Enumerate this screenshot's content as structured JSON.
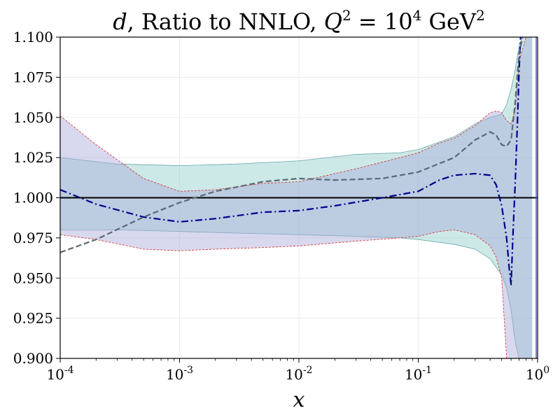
{
  "chart_data": {
    "type": "line",
    "title": {
      "var": "d",
      "text": ", Ratio to NNLO, ",
      "q2": "Q",
      "q2_exp": "2",
      "eq": " = 10",
      "eq_exp": "4",
      "unit": " GeV",
      "unit_exp": "2"
    },
    "xlabel": "x",
    "ylabel": "",
    "xscale": "log",
    "xlim": [
      0.0001,
      1.0
    ],
    "ylim": [
      0.9,
      1.1
    ],
    "grid": true,
    "x_ticks": [
      {
        "value": 0.0001,
        "label": "10",
        "exp": "-4"
      },
      {
        "value": 0.001,
        "label": "10",
        "exp": "-3"
      },
      {
        "value": 0.01,
        "label": "10",
        "exp": "-2"
      },
      {
        "value": 0.1,
        "label": "10",
        "exp": "-1"
      },
      {
        "value": 1.0,
        "label": "10",
        "exp": "0"
      }
    ],
    "y_ticks": [
      {
        "value": 0.9,
        "label": "0.900"
      },
      {
        "value": 0.925,
        "label": "0.925"
      },
      {
        "value": 0.95,
        "label": "0.950"
      },
      {
        "value": 0.975,
        "label": "0.975"
      },
      {
        "value": 1.0,
        "label": "1.000"
      },
      {
        "value": 1.025,
        "label": "1.025"
      },
      {
        "value": 1.05,
        "label": "1.050"
      },
      {
        "value": 1.075,
        "label": "1.075"
      },
      {
        "value": 1.1,
        "label": "1.100"
      }
    ],
    "reference_line": {
      "y": 1.0,
      "color": "#000000"
    },
    "bands": [
      {
        "name": "teal-band",
        "fill": "#8fcfc9",
        "fill_opacity": 0.45,
        "edge": "#6aa7ab",
        "x": [
          0.0001,
          0.0003,
          0.001,
          0.003,
          0.01,
          0.03,
          0.07,
          0.1,
          0.2,
          0.3,
          0.4,
          0.5,
          0.55,
          0.6,
          0.65,
          0.7,
          0.75,
          0.8,
          0.85,
          0.9
        ],
        "upper": [
          1.025,
          1.021,
          1.02,
          1.021,
          1.023,
          1.027,
          1.028,
          1.03,
          1.038,
          1.046,
          1.05,
          1.052,
          1.058,
          1.068,
          1.08,
          1.095,
          1.1,
          1.1,
          1.1,
          1.1
        ],
        "lower": [
          0.98,
          0.98,
          0.979,
          0.978,
          0.977,
          0.976,
          0.975,
          0.974,
          0.971,
          0.968,
          0.962,
          0.952,
          0.944,
          0.93,
          0.91,
          0.9,
          0.9,
          0.9,
          0.9,
          0.9
        ]
      },
      {
        "name": "purple-band",
        "fill": "#a9a9d9",
        "fill_opacity": 0.45,
        "edge": "#d62728",
        "x": [
          0.0001,
          0.0002,
          0.0005,
          0.001,
          0.002,
          0.005,
          0.01,
          0.03,
          0.07,
          0.1,
          0.15,
          0.2,
          0.3,
          0.4,
          0.45,
          0.5,
          0.55,
          0.6,
          0.65,
          0.7,
          0.8,
          0.9
        ],
        "upper": [
          1.051,
          1.033,
          1.012,
          1.004,
          1.005,
          1.009,
          1.01,
          1.018,
          1.025,
          1.028,
          1.034,
          1.037,
          1.045,
          1.053,
          1.054,
          1.053,
          1.048,
          1.046,
          1.055,
          1.085,
          1.1,
          1.1
        ],
        "lower": [
          0.977,
          0.974,
          0.968,
          0.967,
          0.968,
          0.969,
          0.97,
          0.973,
          0.975,
          0.976,
          0.979,
          0.98,
          0.977,
          0.97,
          0.963,
          0.95,
          0.9,
          0.9,
          0.9,
          0.9,
          0.9,
          0.9
        ]
      }
    ],
    "series": [
      {
        "name": "central-dashdot",
        "color": "#00008b",
        "dash": "dashdot",
        "x": [
          0.0001,
          0.0002,
          0.0005,
          0.001,
          0.002,
          0.005,
          0.01,
          0.02,
          0.05,
          0.1,
          0.15,
          0.2,
          0.3,
          0.4,
          0.45,
          0.5,
          0.55,
          0.58,
          0.6,
          0.62,
          0.65,
          0.68,
          0.7,
          0.72
        ],
        "values": [
          1.005,
          0.996,
          0.988,
          0.985,
          0.987,
          0.991,
          0.992,
          0.995,
          1.0,
          1.004,
          1.011,
          1.014,
          1.015,
          1.014,
          1.008,
          0.995,
          0.975,
          0.955,
          0.946,
          0.975,
          1.01,
          1.05,
          1.08,
          1.1
        ]
      },
      {
        "name": "alt-dashed",
        "color": "#5a6a76",
        "dash": "dashed",
        "x": [
          0.0001,
          0.0002,
          0.0005,
          0.001,
          0.002,
          0.005,
          0.01,
          0.02,
          0.05,
          0.1,
          0.2,
          0.3,
          0.4,
          0.45,
          0.5,
          0.55,
          0.6,
          0.65,
          0.7,
          0.75
        ],
        "values": [
          0.966,
          0.974,
          0.988,
          0.997,
          1.004,
          1.01,
          1.012,
          1.011,
          1.012,
          1.016,
          1.025,
          1.036,
          1.041,
          1.039,
          1.033,
          1.032,
          1.036,
          1.06,
          1.09,
          1.1
        ]
      }
    ]
  }
}
